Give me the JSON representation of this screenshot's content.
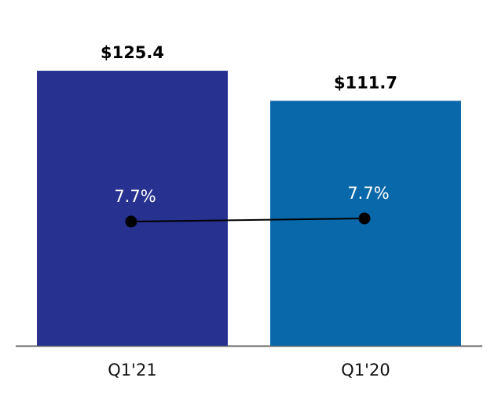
{
  "chart_data": {
    "type": "bar",
    "categories": [
      "Q1'21",
      "Q1'20"
    ],
    "series": [
      {
        "type": "bar",
        "colors": [
          "#27318f",
          "#0868aa"
        ],
        "values": [
          125.4,
          111.7
        ],
        "value_labels": [
          "$125.4",
          "$111.7"
        ]
      },
      {
        "type": "line",
        "axis": "y2",
        "color": "#000000",
        "label_color": "#ffffff",
        "values": [
          7.66,
          7.74
        ],
        "value_labels": [
          "7.7%",
          "7.7%"
        ]
      }
    ],
    "ylim": [
      0,
      150.5
    ],
    "y2lim": [
      4.5,
      12.9
    ]
  }
}
